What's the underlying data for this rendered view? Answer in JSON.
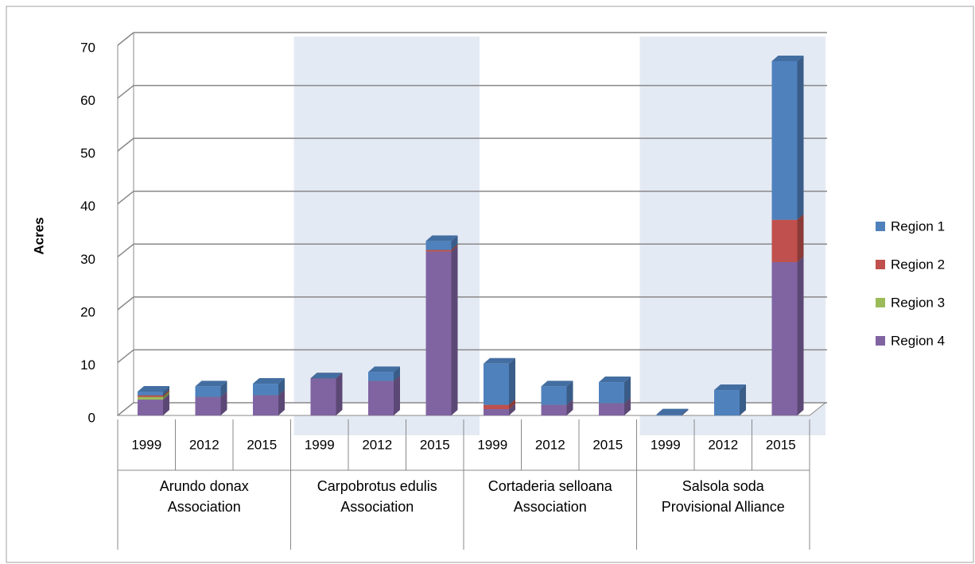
{
  "chart_data": {
    "type": "bar3d_stacked",
    "y_label": "Acres",
    "categories": [
      "1999",
      "2012",
      "2015",
      "1999",
      "2012",
      "2015",
      "1999",
      "2012",
      "2015",
      "1999",
      "2012",
      "2015"
    ],
    "groups": [
      "Arundo donax Association",
      "Carpobrotus edulis Association",
      "Cortaderia selloana Association",
      "Salsola soda Provisional Alliance"
    ],
    "series": [
      {
        "name": "Region 1",
        "color": "#4f81bd",
        "values": [
          0.7,
          2,
          2.2,
          0,
          1.7,
          1.7,
          7.8,
          3.5,
          4,
          0.2,
          4.8,
          30
        ]
      },
      {
        "name": "Region 2",
        "color": "#c0504d",
        "values": [
          0.3,
          0,
          0,
          0,
          0,
          0.3,
          0.8,
          0,
          0,
          0,
          0,
          8
        ]
      },
      {
        "name": "Region 3",
        "color": "#9bbb59",
        "values": [
          0.5,
          0,
          0,
          0,
          0,
          0,
          0,
          0,
          0,
          0,
          0,
          0
        ]
      },
      {
        "name": "Region 4",
        "color": "#8064a2",
        "values": [
          3,
          3.5,
          3.8,
          7,
          6.5,
          31,
          1.2,
          2,
          2.3,
          0,
          0,
          29
        ]
      }
    ],
    "ylim": [
      0,
      70
    ],
    "yticks": [
      0,
      10,
      20,
      30,
      40,
      50,
      60,
      70
    ],
    "grid": true,
    "legend": "right"
  }
}
